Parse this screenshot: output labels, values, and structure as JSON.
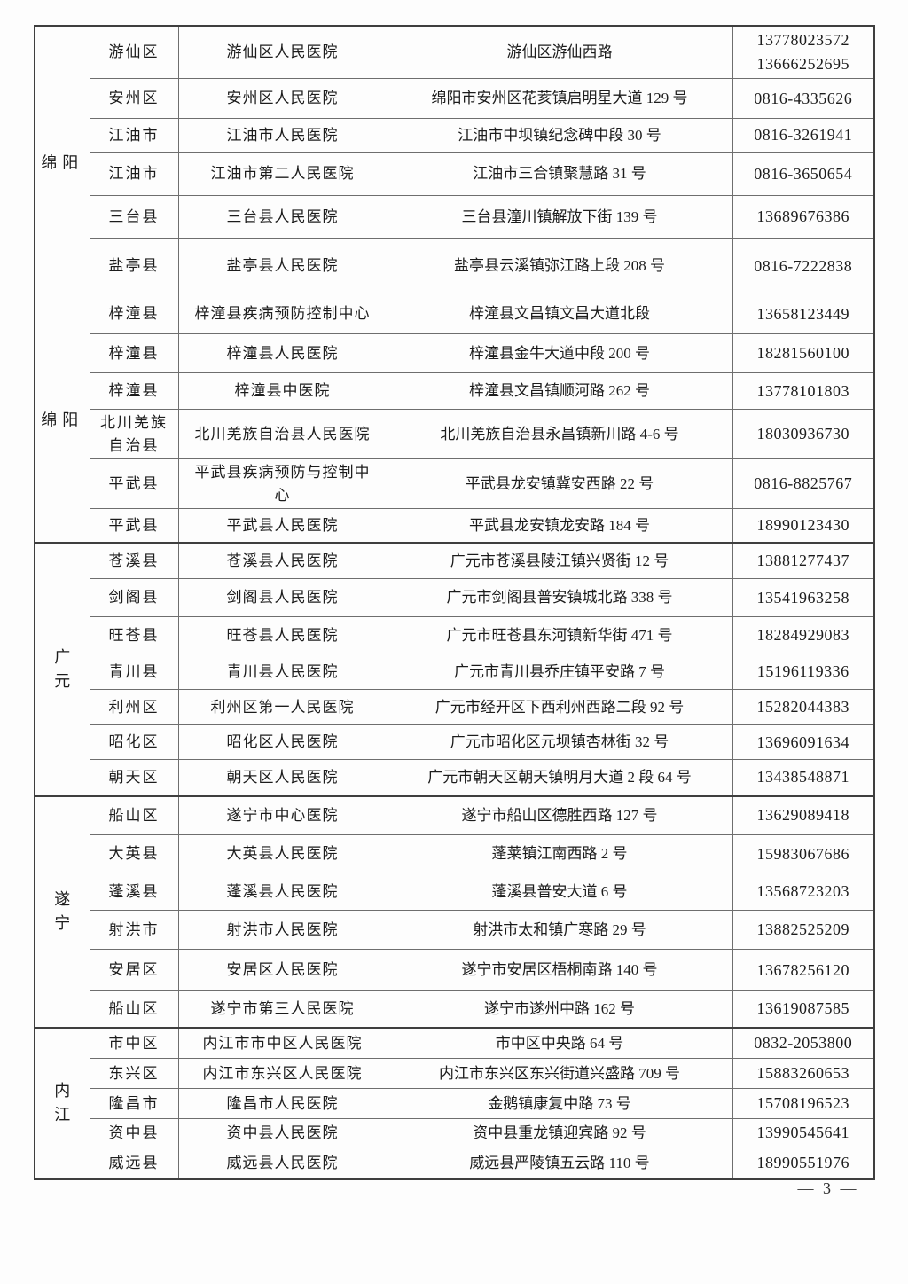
{
  "page": {
    "number_label": "— 3 —"
  },
  "table": {
    "sections": [
      {
        "city": "绵阳",
        "city_labels": [
          "绵阳",
          "绵阳"
        ],
        "rows": [
          {
            "district": "游仙区",
            "facility": "游仙区人民医院",
            "address": "游仙区游仙西路",
            "phone": "13778023572\n13666252695"
          },
          {
            "district": "安州区",
            "facility": "安州区人民医院",
            "address": "绵阳市安州区花荄镇启明星大道 129 号",
            "phone": "0816-4335626"
          },
          {
            "district": "江油市",
            "facility": "江油市人民医院",
            "address": "江油市中坝镇纪念碑中段 30 号",
            "phone": "0816-3261941"
          },
          {
            "district": "江油市",
            "facility": "江油市第二人民医院",
            "address": "江油市三合镇聚慧路 31 号",
            "phone": "0816-3650654"
          },
          {
            "district": "三台县",
            "facility": "三台县人民医院",
            "address": "三台县潼川镇解放下街 139 号",
            "phone": "13689676386"
          },
          {
            "district": "盐亭县",
            "facility": "盐亭县人民医院",
            "address": "盐亭县云溪镇弥江路上段 208 号",
            "phone": "0816-7222838"
          },
          {
            "district": "梓潼县",
            "facility": "梓潼县疾病预防控制中心",
            "address": "梓潼县文昌镇文昌大道北段",
            "phone": "13658123449"
          },
          {
            "district": "梓潼县",
            "facility": "梓潼县人民医院",
            "address": "梓潼县金牛大道中段 200 号",
            "phone": "18281560100"
          },
          {
            "district": "梓潼县",
            "facility": "梓潼县中医院",
            "address": "梓潼县文昌镇顺河路 262 号",
            "phone": "13778101803"
          },
          {
            "district": "北川羌族\n自治县",
            "facility": "北川羌族自治县人民医院",
            "address": "北川羌族自治县永昌镇新川路 4-6 号",
            "phone": "18030936730"
          },
          {
            "district": "平武县",
            "facility": "平武县疾病预防与控制中\n心",
            "address": "平武县龙安镇冀安西路 22 号",
            "phone": "0816-8825767"
          },
          {
            "district": "平武县",
            "facility": "平武县人民医院",
            "address": "平武县龙安镇龙安路 184 号",
            "phone": "18990123430"
          }
        ]
      },
      {
        "city": "广元",
        "city_labels": [
          "广元"
        ],
        "rows": [
          {
            "district": "苍溪县",
            "facility": "苍溪县人民医院",
            "address": "广元市苍溪县陵江镇兴贤街 12 号",
            "phone": "13881277437"
          },
          {
            "district": "剑阁县",
            "facility": "剑阁县人民医院",
            "address": "广元市剑阁县普安镇城北路 338 号",
            "phone": "13541963258"
          },
          {
            "district": "旺苍县",
            "facility": "旺苍县人民医院",
            "address": "广元市旺苍县东河镇新华街 471 号",
            "phone": "18284929083"
          },
          {
            "district": "青川县",
            "facility": "青川县人民医院",
            "address": "广元市青川县乔庄镇平安路 7 号",
            "phone": "15196119336"
          },
          {
            "district": "利州区",
            "facility": "利州区第一人民医院",
            "address": "广元市经开区下西利州西路二段 92 号",
            "phone": "15282044383"
          },
          {
            "district": "昭化区",
            "facility": "昭化区人民医院",
            "address": "广元市昭化区元坝镇杏林街 32 号",
            "phone": "13696091634"
          },
          {
            "district": "朝天区",
            "facility": "朝天区人民医院",
            "address": "广元市朝天区朝天镇明月大道 2 段 64 号",
            "phone": "13438548871"
          }
        ]
      },
      {
        "city": "遂宁",
        "city_labels": [
          "遂宁"
        ],
        "rows": [
          {
            "district": "船山区",
            "facility": "遂宁市中心医院",
            "address": "遂宁市船山区德胜西路 127 号",
            "phone": "13629089418"
          },
          {
            "district": "大英县",
            "facility": "大英县人民医院",
            "address": "蓬莱镇江南西路 2 号",
            "phone": "15983067686"
          },
          {
            "district": "蓬溪县",
            "facility": "蓬溪县人民医院",
            "address": "蓬溪县普安大道 6 号",
            "phone": "13568723203"
          },
          {
            "district": "射洪市",
            "facility": "射洪市人民医院",
            "address": "射洪市太和镇广寒路 29 号",
            "phone": "13882525209"
          },
          {
            "district": "安居区",
            "facility": "安居区人民医院",
            "address": "遂宁市安居区梧桐南路 140 号",
            "phone": "13678256120"
          },
          {
            "district": "船山区",
            "facility": "遂宁市第三人民医院",
            "address": "遂宁市遂州中路 162 号",
            "phone": "13619087585"
          }
        ]
      },
      {
        "city": "内江",
        "city_labels": [
          "内江"
        ],
        "rows": [
          {
            "district": "市中区",
            "facility": "内江市市中区人民医院",
            "address": "市中区中央路 64 号",
            "phone": "0832-2053800"
          },
          {
            "district": "东兴区",
            "facility": "内江市东兴区人民医院",
            "address": "内江市东兴区东兴街道兴盛路 709 号",
            "phone": "15883260653"
          },
          {
            "district": "隆昌市",
            "facility": "隆昌市人民医院",
            "address": "金鹅镇康复中路 73 号",
            "phone": "15708196523"
          },
          {
            "district": "资中县",
            "facility": "资中县人民医院",
            "address": "资中县重龙镇迎宾路 92 号",
            "phone": "13990545641"
          },
          {
            "district": "威远县",
            "facility": "威远县人民医院",
            "address": "威远县严陵镇五云路 110 号",
            "phone": "18990551976"
          }
        ]
      }
    ]
  }
}
